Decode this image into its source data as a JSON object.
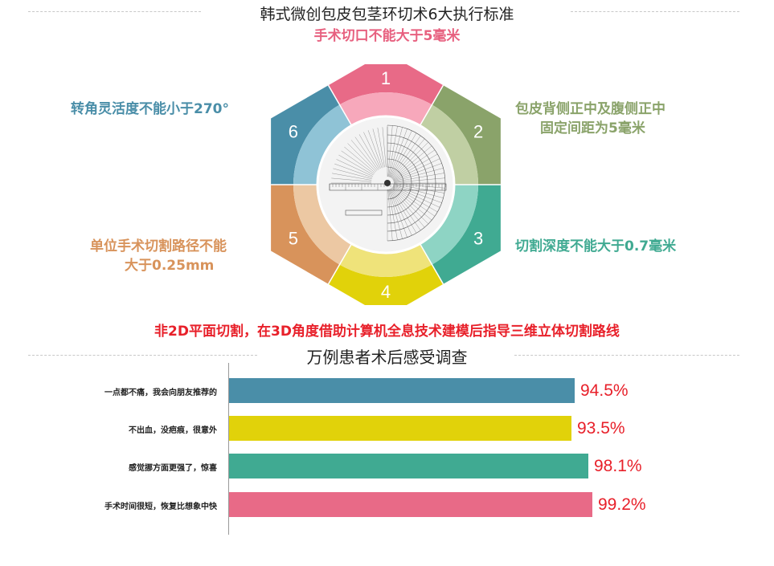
{
  "header": {
    "title": "韩式微创包皮包茎环切术6大执行标准",
    "top_label": "手术切口不能大于5毫米"
  },
  "wheel": {
    "segments": [
      {
        "num": "1",
        "color": "#e86a87",
        "inner": "#f7a8bb"
      },
      {
        "num": "2",
        "color": "#8aa36a",
        "inner": "#c0cfa3"
      },
      {
        "num": "3",
        "color": "#40aa92",
        "inner": "#8ed4c4"
      },
      {
        "num": "4",
        "color": "#e1d20a",
        "inner": "#efe37a"
      },
      {
        "num": "5",
        "color": "#d8935b",
        "inner": "#ecc8a3"
      },
      {
        "num": "6",
        "color": "#4a8ea8",
        "inner": "#8fc3d6"
      }
    ]
  },
  "labels": {
    "seg2_line1": "包皮背侧正中及腹侧正中",
    "seg2_line2": "固定间距为5毫米",
    "seg3": "切割深度不能大于0.7毫米",
    "seg5_line1": "单位手术切割路径不能",
    "seg5_line2": "大于0.25mm",
    "seg6": "转角灵活度不能小于270°"
  },
  "tagline": "非2D平面切割，在3D角度借助计算机全息技术建模后指导三维立体切割路线",
  "survey_title": "万例患者术后感受调查",
  "chart_data": {
    "type": "bar",
    "orientation": "horizontal",
    "categories": [
      "一点都不痛，我会向朋友推荐的",
      "不出血，没疤痕，很意外",
      "感觉挪方面更强了，惊喜",
      "手术时间很短，恢复比想象中快"
    ],
    "values": [
      94.5,
      93.5,
      98.1,
      99.2
    ],
    "value_labels": [
      "94.5%",
      "93.5%",
      "98.1%",
      "99.2%"
    ],
    "colors": [
      "#4a8ea8",
      "#e1d20a",
      "#40aa92",
      "#e86a87"
    ],
    "xlim": [
      0,
      100
    ],
    "title": "万例患者术后感受调查"
  }
}
